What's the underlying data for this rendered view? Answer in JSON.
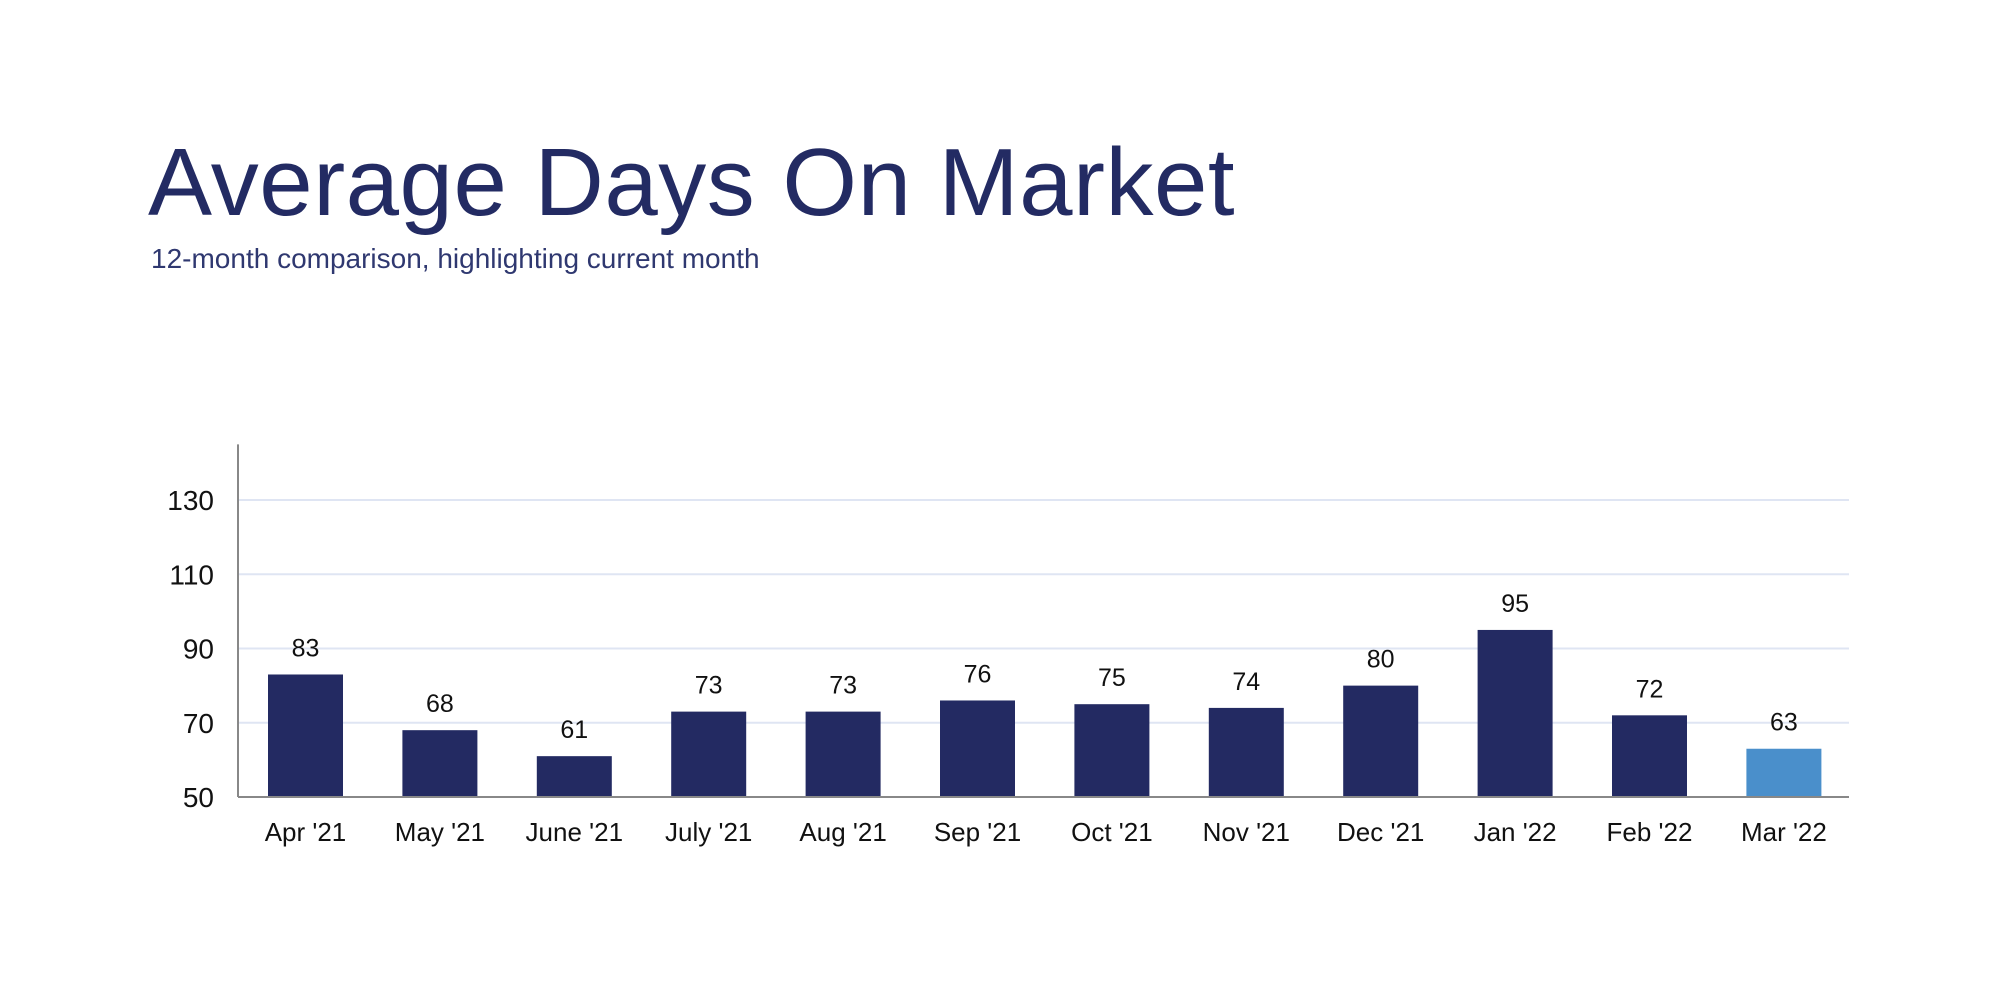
{
  "chart_data": {
    "type": "bar",
    "title": "Average Days On Market",
    "subtitle": "12-month comparison, highlighting current month",
    "xlabel": "",
    "ylabel": "",
    "categories": [
      "Apr '21",
      "May '21",
      "June '21",
      "July '21",
      "Aug '21",
      "Sep '21",
      "Oct '21",
      "Nov '21",
      "Dec '21",
      "Jan '22",
      "Feb '22",
      "Mar '22"
    ],
    "values": [
      83,
      68,
      61,
      73,
      73,
      76,
      75,
      74,
      80,
      95,
      72,
      63
    ],
    "highlight_index": 11,
    "ylim": [
      50,
      145
    ],
    "yticks": [
      50,
      70,
      90,
      110,
      130
    ],
    "grid": true,
    "data_labels": true,
    "colors": {
      "bar": "#232a62",
      "highlight": "#4a8fcb",
      "grid": "#dfe5f3",
      "axis": "#888888",
      "title": "#232b63"
    }
  }
}
